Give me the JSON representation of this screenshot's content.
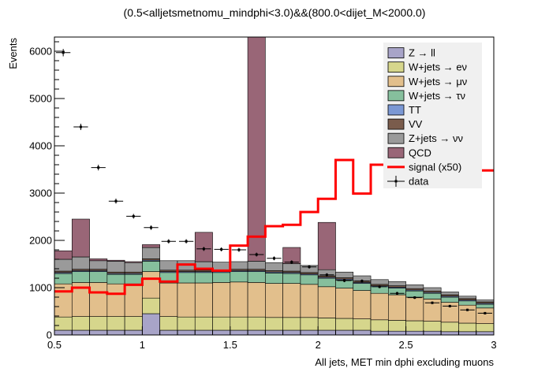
{
  "chart_data": {
    "type": "bar",
    "title": "(0.5<alljetsmetnomu_mindphi<3.0)&&(800.0<dijet_M<2000.0)",
    "xlabel": "All jets, MET min dphi excluding muons",
    "ylabel": "Events",
    "xlim": [
      0.5,
      3.0
    ],
    "ylim": [
      0,
      6300
    ],
    "x_ticks": [
      0.5,
      1,
      1.5,
      2,
      2.5,
      3
    ],
    "x_tick_labels": [
      "0.5",
      "1",
      "1.5",
      "2",
      "2.5",
      "3"
    ],
    "y_ticks": [
      0,
      1000,
      2000,
      3000,
      4000,
      5000,
      6000
    ],
    "y_tick_labels": [
      "0",
      "1000",
      "2000",
      "3000",
      "4000",
      "5000",
      "6000"
    ],
    "bin_edges": [
      0.5,
      0.6,
      0.7,
      0.8,
      0.9,
      1.0,
      1.1,
      1.2,
      1.3,
      1.4,
      1.5,
      1.6,
      1.7,
      1.8,
      1.9,
      2.0,
      2.1,
      2.2,
      2.3,
      2.4,
      2.5,
      2.6,
      2.7,
      2.8,
      2.9,
      3.0
    ],
    "series": [
      {
        "name": "Z → ll",
        "color": "#a8a4c8",
        "values": [
          100,
          100,
          100,
          100,
          100,
          450,
          100,
          100,
          100,
          100,
          100,
          100,
          100,
          100,
          100,
          100,
          100,
          100,
          80,
          80,
          80,
          80,
          70,
          70,
          70
        ]
      },
      {
        "name": "W+jets → eν",
        "color": "#d6d68c",
        "values": [
          280,
          290,
          290,
          290,
          290,
          330,
          290,
          280,
          280,
          280,
          280,
          280,
          270,
          270,
          270,
          260,
          250,
          240,
          240,
          230,
          220,
          210,
          200,
          180,
          170
        ]
      },
      {
        "name": "W+jets → μν",
        "color": "#e2bf8c",
        "values": [
          700,
          720,
          720,
          690,
          690,
          560,
          710,
          720,
          720,
          730,
          740,
          730,
          720,
          720,
          700,
          660,
          640,
          600,
          560,
          540,
          500,
          470,
          420,
          380,
          330
        ]
      },
      {
        "name": "W+jets → τν",
        "color": "#86bf9d",
        "values": [
          220,
          230,
          230,
          200,
          200,
          220,
          220,
          220,
          220,
          210,
          220,
          230,
          220,
          210,
          200,
          180,
          170,
          150,
          140,
          140,
          130,
          120,
          110,
          90,
          80
        ]
      },
      {
        "name": "TT",
        "color": "#7b98d4",
        "values": [
          20,
          20,
          20,
          20,
          20,
          20,
          20,
          20,
          20,
          20,
          20,
          20,
          20,
          20,
          20,
          20,
          20,
          20,
          20,
          20,
          20,
          20,
          20,
          20,
          20
        ]
      },
      {
        "name": "VV",
        "color": "#7a5c4c",
        "values": [
          30,
          30,
          30,
          30,
          30,
          30,
          30,
          30,
          30,
          30,
          30,
          30,
          30,
          30,
          30,
          30,
          30,
          30,
          30,
          30,
          30,
          30,
          30,
          30,
          30
        ]
      },
      {
        "name": "Z+jets → νν",
        "color": "#9a9a9a",
        "values": [
          250,
          260,
          180,
          230,
          200,
          240,
          200,
          200,
          180,
          170,
          160,
          170,
          170,
          160,
          150,
          130,
          120,
          110,
          100,
          90,
          80,
          70,
          60,
          50,
          40
        ]
      },
      {
        "name": "QCD",
        "color": "#996677",
        "values": [
          180,
          800,
          40,
          20,
          20,
          60,
          0,
          0,
          620,
          0,
          0,
          5000,
          0,
          340,
          0,
          1000,
          0,
          0,
          0,
          0,
          0,
          0,
          0,
          0,
          0
        ]
      }
    ],
    "signal": {
      "name": "signal (x50)",
      "color": "#ff0000",
      "values": [
        920,
        1000,
        900,
        870,
        1060,
        1190,
        1130,
        1490,
        1400,
        1360,
        1890,
        2080,
        2300,
        2330,
        2600,
        2880,
        3700,
        2990,
        3600,
        3600,
        3600,
        3600,
        3600,
        3600,
        3480
      ]
    },
    "data": {
      "name": "data",
      "color": "#000000",
      "values": [
        5970,
        4400,
        3540,
        2830,
        2510,
        2270,
        1980,
        1980,
        1820,
        1810,
        1800,
        1700,
        1620,
        1540,
        1440,
        1270,
        1150,
        1140,
        1020,
        880,
        790,
        680,
        610,
        530,
        460
      ],
      "errors": [
        78,
        67,
        60,
        53,
        50,
        48,
        45,
        45,
        43,
        43,
        42,
        41,
        40,
        39,
        38,
        36,
        34,
        34,
        32,
        30,
        28,
        26,
        25,
        23,
        21
      ]
    },
    "legend_position": "top-right"
  }
}
